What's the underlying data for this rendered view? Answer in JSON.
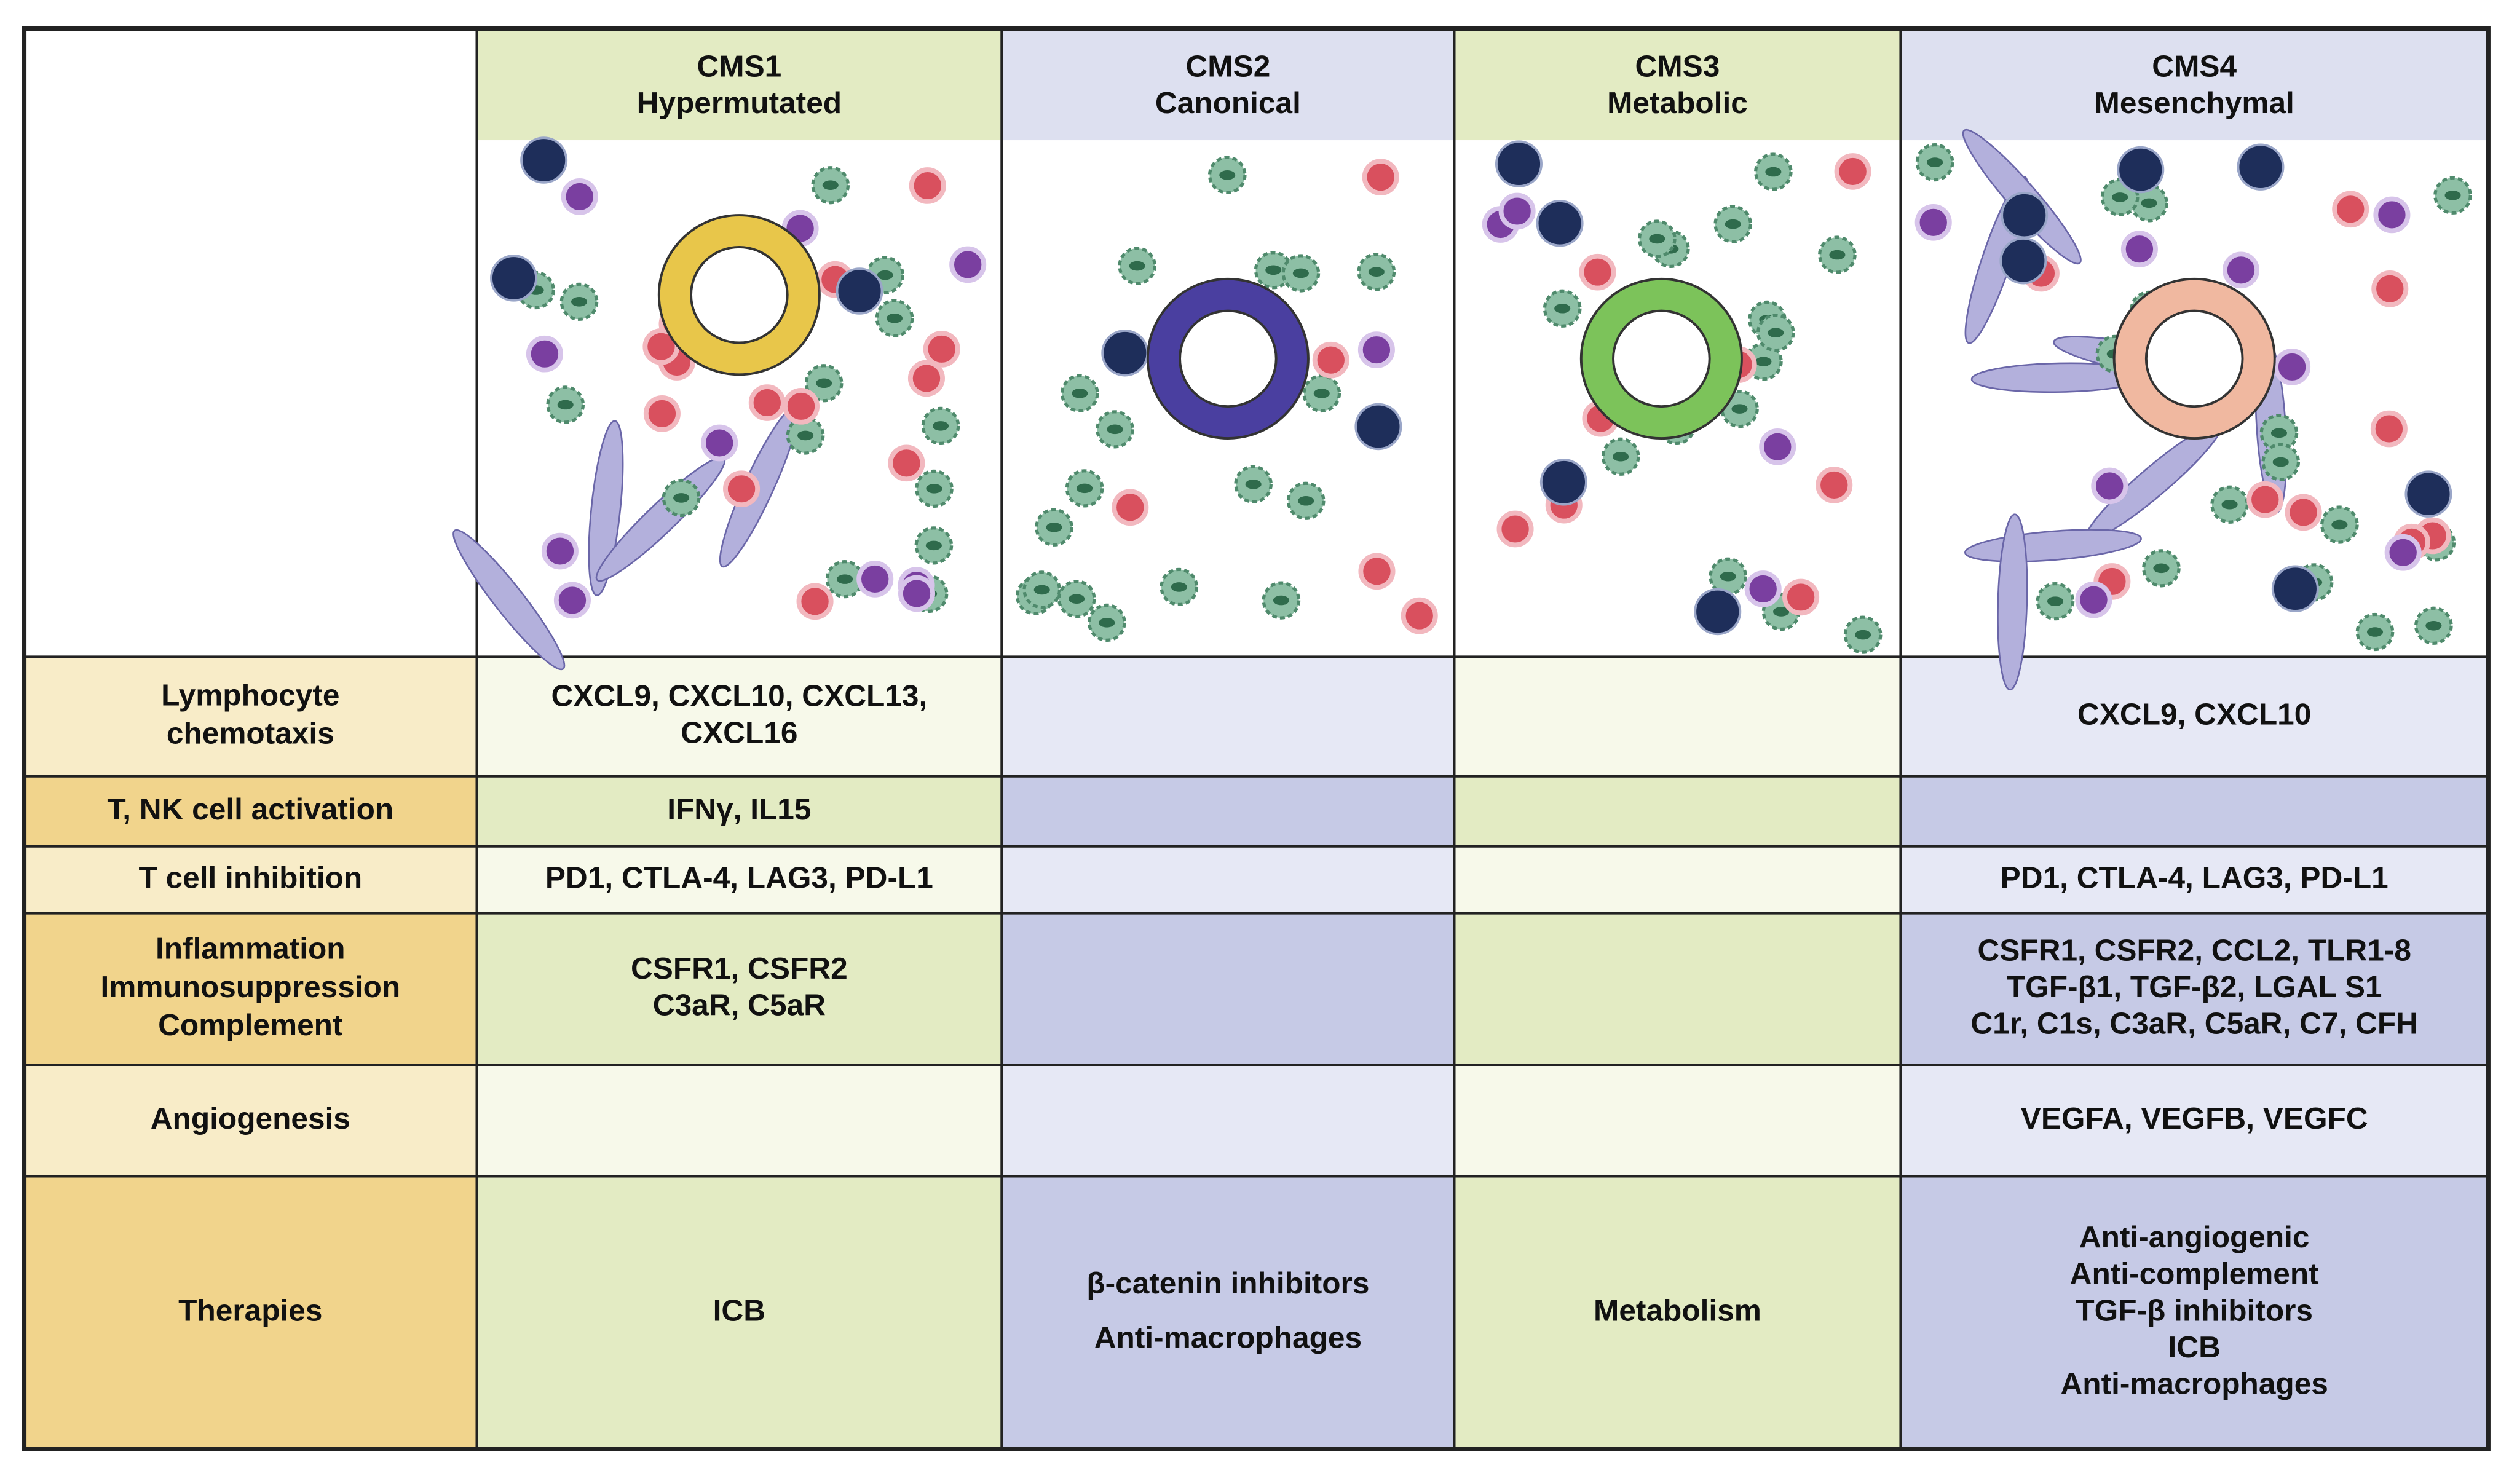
{
  "table": {
    "columns": [
      {
        "name": "CMS1",
        "subtitle": "Hypermutated"
      },
      {
        "name": "CMS2",
        "subtitle": "Canonical"
      },
      {
        "name": "CMS3",
        "subtitle": "Metabolic"
      },
      {
        "name": "CMS4",
        "subtitle": "Mesenchymal"
      }
    ],
    "rows": [
      {
        "label": [
          "Lymphocyte",
          "chemotaxis"
        ],
        "cells": [
          [
            "CXCL9, CXCL10, CXCL13,",
            "CXCL16"
          ],
          [],
          [],
          [
            "CXCL9, CXCL10"
          ]
        ]
      },
      {
        "label": [
          "T, NK cell activation"
        ],
        "cells": [
          [
            "IFNγ, IL15"
          ],
          [],
          [],
          []
        ]
      },
      {
        "label": [
          "T cell inhibition"
        ],
        "cells": [
          [
            "PD1, CTLA-4, LAG3, PD-L1"
          ],
          [],
          [],
          [
            "PD1, CTLA-4, LAG3, PD-L1"
          ]
        ]
      },
      {
        "label": [
          "Inflammation",
          "Immunosuppression",
          "Complement"
        ],
        "cells": [
          [
            "CSFR1, CSFR2",
            "C3aR, C5aR"
          ],
          [],
          [],
          [
            "CSFR1, CSFR2, CCL2, TLR1-8",
            "TGF-β1, TGF-β2, LGAL S1",
            "C1r, C1s, C3aR, C5aR, C7, CFH"
          ]
        ]
      },
      {
        "label": [
          "Angiogenesis"
        ],
        "cells": [
          [],
          [],
          [],
          [
            "VEGFA, VEGFB, VEGFC"
          ]
        ]
      },
      {
        "label": [
          "Therapies"
        ],
        "cells": [
          [
            "ICB"
          ],
          [
            "β-catenin inhibitors",
            "Anti-macrophages"
          ],
          [
            "Metabolism"
          ],
          [
            "Anti-angiogenic",
            "Anti-complement",
            "TGF-β inhibitors",
            "ICB",
            "Anti-macrophages"
          ]
        ]
      }
    ]
  }
}
